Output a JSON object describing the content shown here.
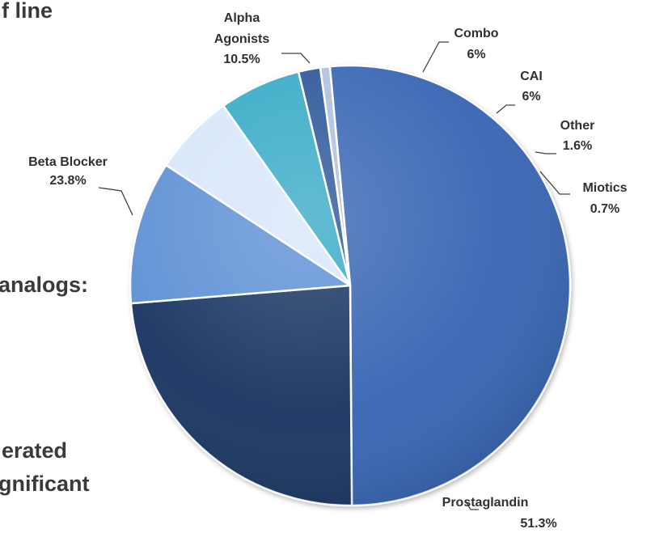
{
  "slide_text": {
    "line1": "f line",
    "line2": "analogs:",
    "line3": "erated",
    "line4": "gnificant"
  },
  "chart_data": {
    "type": "pie",
    "title": "",
    "start_angle_deg": 95.3,
    "direction": "clockwise",
    "series": [
      {
        "name": "Prostaglandin",
        "value_label": "51.3%",
        "value": 51.3,
        "color": "#3563b2"
      },
      {
        "name": "Beta Blocker",
        "value_label": "23.8%",
        "value": 23.8,
        "color": "#17325e"
      },
      {
        "name": "Alpha Agonists",
        "value_label": "10.5%",
        "value": 10.5,
        "color": "#5b8fd4"
      },
      {
        "name": "Combo",
        "value_label": "6%",
        "value": 6.0,
        "color": "#d8e6fb"
      },
      {
        "name": "CAI",
        "value_label": "6%",
        "value": 6.0,
        "color": "#36a9c6"
      },
      {
        "name": "Other",
        "value_label": "1.6%",
        "value": 1.6,
        "color": "#2a5597"
      },
      {
        "name": "Miotics",
        "value_label": "0.7%",
        "value": 0.7,
        "color": "#aebfe0"
      }
    ]
  }
}
